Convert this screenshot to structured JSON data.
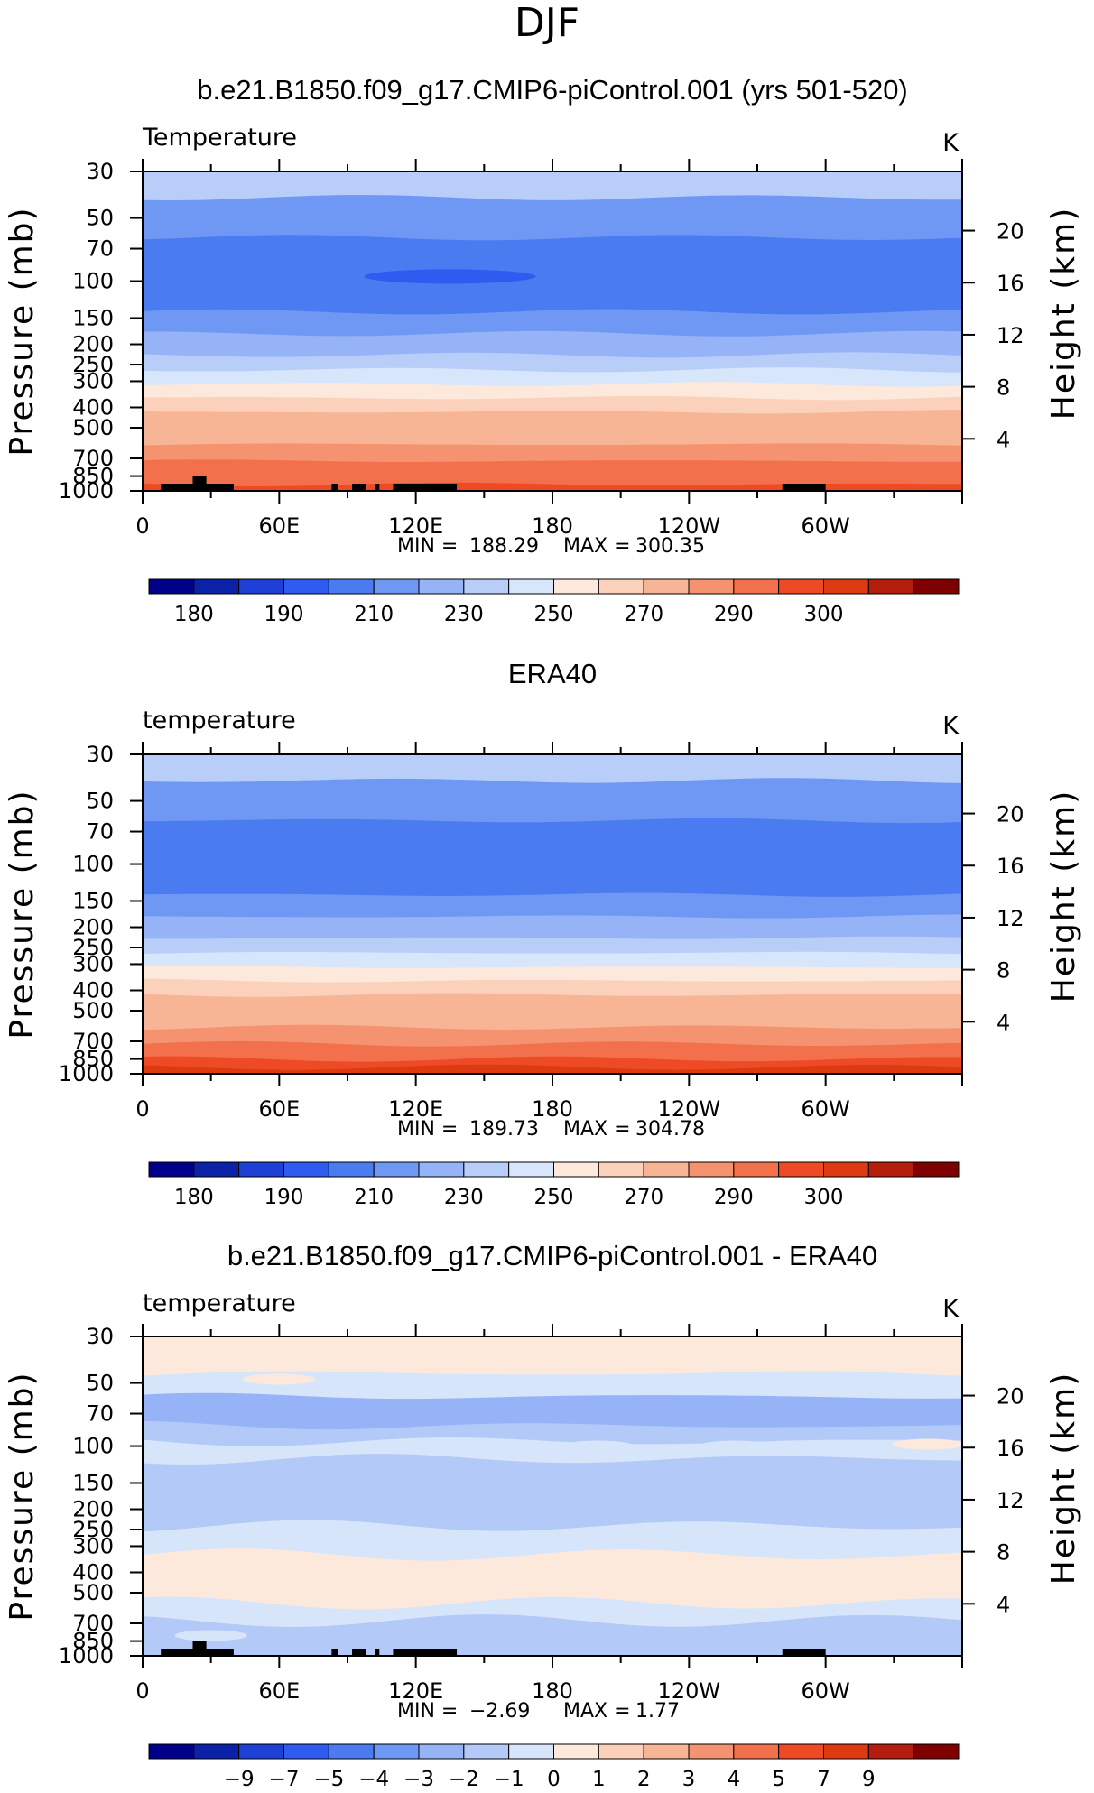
{
  "figure": {
    "title": "DJF"
  },
  "colors": {
    "absolute_scale": [
      "#00008b",
      "#0b22a8",
      "#1e40d6",
      "#2e5cf0",
      "#4a7bf0",
      "#6f98f4",
      "#95b3f6",
      "#b8cdf8",
      "#d8e6fb",
      "#fde9dc",
      "#fbd1bc",
      "#f8b596",
      "#f59370",
      "#f3704c",
      "#ee4a25",
      "#de3a12",
      "#b41c0c",
      "#7f0000"
    ],
    "difference_scale": [
      "#00008b",
      "#0b22a8",
      "#1e40d6",
      "#2e5cf0",
      "#4a7bf0",
      "#6f98f4",
      "#95b3f6",
      "#b3c9f7",
      "#d7e5fb",
      "#fde9dc",
      "#fbd1bc",
      "#f8b596",
      "#f59370",
      "#f3704c",
      "#ee4a25",
      "#de3a12",
      "#b41c0c",
      "#7f0000"
    ],
    "topography": "#000000"
  },
  "chart_data": [
    {
      "type": "heatmap",
      "title": "b.e21.B1850.f09_g17.CMIP6-piControl.001 (yrs 501-520)",
      "left_label": "Temperature",
      "right_label": "K",
      "ylabel": "Pressure (mb)",
      "y2label": "Height (km)",
      "x_ticks": [
        "0",
        "60E",
        "120E",
        "180",
        "120W",
        "60W"
      ],
      "x_range": [
        0,
        360
      ],
      "y_ticks": [
        "30",
        "50",
        "70",
        "100",
        "150",
        "200",
        "250",
        "300",
        "400",
        "500",
        "700",
        "850",
        "1000"
      ],
      "y_tick_values": [
        30,
        50,
        70,
        100,
        150,
        200,
        250,
        300,
        400,
        500,
        700,
        850,
        1000
      ],
      "ylim": [
        1000,
        30
      ],
      "y_scale": "log",
      "y2_ticks": [
        "4",
        "8",
        "12",
        "16",
        "20"
      ],
      "y2_tick_values": [
        4,
        8,
        12,
        16,
        20
      ],
      "min_label": "MIN =",
      "min_value": "188.29",
      "max_label": "MAX =",
      "max_value": "300.35",
      "colorbar_labels": [
        "180",
        "190",
        "210",
        "230",
        "250",
        "270",
        "290",
        "300"
      ],
      "layers_top_to_bottom": [
        {
          "p_bottom": 40,
          "value": 220
        },
        {
          "p_bottom": 62,
          "value": 205
        },
        {
          "p_bottom": 140,
          "value": 195
        },
        {
          "p_bottom": 178,
          "value": 205
        },
        {
          "p_bottom": 225,
          "value": 215
        },
        {
          "p_bottom": 265,
          "value": 225
        },
        {
          "p_bottom": 310,
          "value": 235
        },
        {
          "p_bottom": 360,
          "value": 245
        },
        {
          "p_bottom": 420,
          "value": 255
        },
        {
          "p_bottom": 500,
          "value": 262
        },
        {
          "p_bottom": 600,
          "value": 268
        },
        {
          "p_bottom": 720,
          "value": 275
        },
        {
          "p_bottom": 850,
          "value": 282
        },
        {
          "p_bottom": 930,
          "value": 288
        },
        {
          "p_bottom": 1000,
          "value": 294
        }
      ],
      "cold_core": {
        "lon": 135,
        "p": 95,
        "value": 185
      },
      "topography": true
    },
    {
      "type": "heatmap",
      "title": "ERA40",
      "left_label": "temperature",
      "right_label": "K",
      "ylabel": "Pressure (mb)",
      "y2label": "Height (km)",
      "x_ticks": [
        "0",
        "60E",
        "120E",
        "180",
        "120W",
        "60W"
      ],
      "x_range": [
        0,
        360
      ],
      "y_ticks": [
        "30",
        "50",
        "70",
        "100",
        "150",
        "200",
        "250",
        "300",
        "400",
        "500",
        "700",
        "850",
        "1000"
      ],
      "y_tick_values": [
        30,
        50,
        70,
        100,
        150,
        200,
        250,
        300,
        400,
        500,
        700,
        850,
        1000
      ],
      "ylim": [
        1000,
        30
      ],
      "y_scale": "log",
      "y2_ticks": [
        "4",
        "8",
        "12",
        "16",
        "20"
      ],
      "y2_tick_values": [
        4,
        8,
        12,
        16,
        20
      ],
      "min_label": "MIN =",
      "min_value": "189.73",
      "max_label": "MAX =",
      "max_value": "304.78",
      "colorbar_labels": [
        "180",
        "190",
        "210",
        "230",
        "250",
        "270",
        "290",
        "300"
      ],
      "layers_top_to_bottom": [
        {
          "p_bottom": 40,
          "value": 220
        },
        {
          "p_bottom": 62,
          "value": 205
        },
        {
          "p_bottom": 140,
          "value": 195
        },
        {
          "p_bottom": 178,
          "value": 205
        },
        {
          "p_bottom": 225,
          "value": 215
        },
        {
          "p_bottom": 265,
          "value": 225
        },
        {
          "p_bottom": 310,
          "value": 235
        },
        {
          "p_bottom": 360,
          "value": 245
        },
        {
          "p_bottom": 420,
          "value": 255
        },
        {
          "p_bottom": 500,
          "value": 262
        },
        {
          "p_bottom": 600,
          "value": 268
        },
        {
          "p_bottom": 720,
          "value": 275
        },
        {
          "p_bottom": 850,
          "value": 282
        },
        {
          "p_bottom": 930,
          "value": 290
        },
        {
          "p_bottom": 1000,
          "value": 296
        }
      ],
      "cold_core": {
        "lon": 150,
        "p": 100,
        "value": 190
      },
      "topography": false
    },
    {
      "type": "heatmap",
      "title": "b.e21.B1850.f09_g17.CMIP6-piControl.001 - ERA40",
      "left_label": "temperature",
      "right_label": "K",
      "ylabel": "Pressure (mb)",
      "y2label": "Height (km)",
      "x_ticks": [
        "0",
        "60E",
        "120E",
        "180",
        "120W",
        "60W"
      ],
      "x_range": [
        0,
        360
      ],
      "y_ticks": [
        "30",
        "50",
        "70",
        "100",
        "150",
        "200",
        "250",
        "300",
        "400",
        "500",
        "700",
        "850",
        "1000"
      ],
      "y_tick_values": [
        30,
        50,
        70,
        100,
        150,
        200,
        250,
        300,
        400,
        500,
        700,
        850,
        1000
      ],
      "ylim": [
        1000,
        30
      ],
      "y_scale": "log",
      "y2_ticks": [
        "4",
        "8",
        "12",
        "16",
        "20"
      ],
      "y2_tick_values": [
        4,
        8,
        12,
        16,
        20
      ],
      "min_label": "MIN =",
      "min_value": "−2.69",
      "max_label": "MAX =",
      "max_value": "1.77",
      "colorbar_labels": [
        "−9",
        "−7",
        "−5",
        "−4",
        "−3",
        "−2",
        "−1",
        "0",
        "1",
        "2",
        "3",
        "4",
        "5",
        "7",
        "9"
      ],
      "layers_top_to_bottom": [
        {
          "p_bottom": 45,
          "value": 0.5
        },
        {
          "p_bottom": 58,
          "value": -0.5
        },
        {
          "p_bottom": 80,
          "value": -2.5
        },
        {
          "p_bottom": 95,
          "value": -1.5
        },
        {
          "p_bottom": 115,
          "value": -0.5
        },
        {
          "p_bottom": 240,
          "value": -1.5
        },
        {
          "p_bottom": 330,
          "value": -0.5
        },
        {
          "p_bottom": 560,
          "value": 0.5
        },
        {
          "p_bottom": 680,
          "value": -0.5
        },
        {
          "p_bottom": 1000,
          "value": -1.5
        }
      ],
      "topography": true
    }
  ]
}
